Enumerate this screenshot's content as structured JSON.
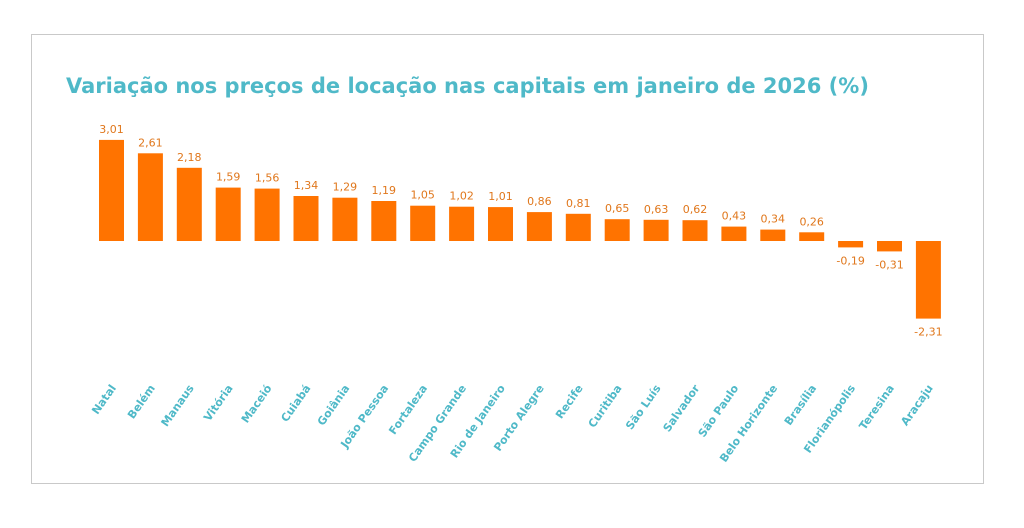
{
  "chart_data": {
    "type": "bar",
    "title": "Variação nos preços de locação nas capitais em janeiro de 2026 (%)",
    "categories": [
      "Natal",
      "Belém",
      "Manaus",
      "Vitória",
      "Maceió",
      "Cuiabá",
      "Goiânia",
      "João Pessoa",
      "Fortaleza",
      "Campo Grande",
      "Rio de Janeiro",
      "Porto Alegre",
      "Recife",
      "Curitiba",
      "São Luís",
      "Salvador",
      "São Paulo",
      "Belo Horizonte",
      "Brasília",
      "Florianópolis",
      "Teresina",
      "Aracaju"
    ],
    "values": [
      3.01,
      2.61,
      2.18,
      1.59,
      1.56,
      1.34,
      1.29,
      1.19,
      1.05,
      1.02,
      1.01,
      0.86,
      0.81,
      0.65,
      0.63,
      0.62,
      0.43,
      0.34,
      0.26,
      -0.19,
      -0.31,
      -2.31
    ],
    "value_labels": [
      "3,01",
      "2,61",
      "2,18",
      "1,59",
      "1,56",
      "1,34",
      "1,29",
      "1,19",
      "1,05",
      "1,02",
      "1,01",
      "0,86",
      "0,81",
      "0,65",
      "0,63",
      "0,62",
      "0,43",
      "0,34",
      "0,26",
      "-0,19",
      "-0,31",
      "-2,31"
    ],
    "bar_color": "#ff7300",
    "label_color": "#e0771c",
    "category_color": "#4fb9c8",
    "grid": false,
    "legend": "none"
  }
}
